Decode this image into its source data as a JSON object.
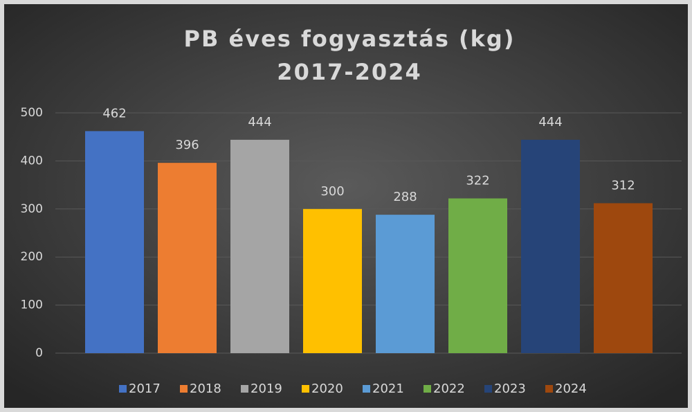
{
  "chart_data": {
    "type": "bar",
    "title": [
      "PB éves fogyasztás (kg)",
      "2017-2024"
    ],
    "series": [
      {
        "name": "2017",
        "color": "#4472c4",
        "values": [
          462
        ]
      },
      {
        "name": "2018",
        "color": "#ed7d31",
        "values": [
          396
        ]
      },
      {
        "name": "2019",
        "color": "#a5a5a5",
        "values": [
          444
        ]
      },
      {
        "name": "2020",
        "color": "#ffc000",
        "values": [
          300
        ]
      },
      {
        "name": "2021",
        "color": "#5b9bd5",
        "values": [
          288
        ]
      },
      {
        "name": "2022",
        "color": "#70ad47",
        "values": [
          322
        ]
      },
      {
        "name": "2023",
        "color": "#264478",
        "values": [
          444
        ]
      },
      {
        "name": "2024",
        "color": "#9e480e",
        "values": [
          312
        ]
      }
    ],
    "ylim": [
      0,
      500
    ],
    "yticks": [
      0,
      100,
      200,
      300,
      400,
      500
    ],
    "grid": true,
    "legend": "bottom"
  }
}
